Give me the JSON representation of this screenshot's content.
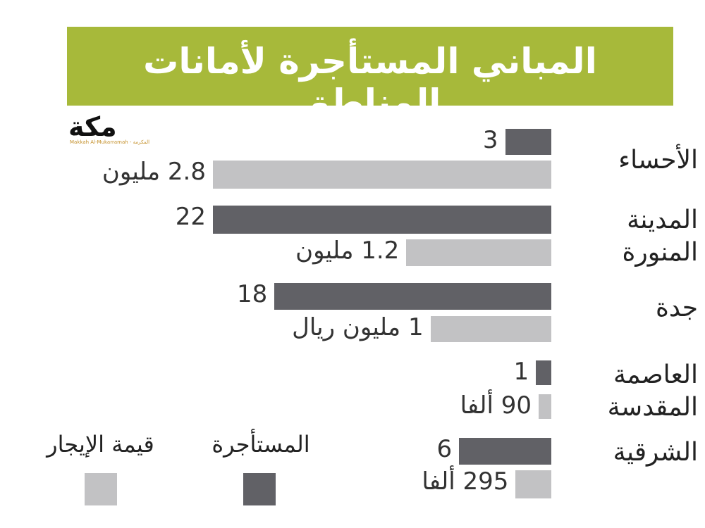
{
  "title": "المباني المستأجرة لأمانات المناطق",
  "logo": {
    "main": "مكة",
    "sub": "Makkah Al-Mukarramah - المكرمة"
  },
  "colors": {
    "banner": "#a7b93a",
    "rented": "#616166",
    "rent_value": "#c2c2c4"
  },
  "chart_data": {
    "type": "bar",
    "orientation": "horizontal",
    "title": "المباني المستأجرة لأمانات المناطق",
    "legend_position": "bottom-left",
    "grid": false,
    "categories": [
      "الأحساء",
      "المدينة المنورة",
      "جدة",
      "العاصمة المقدسة",
      "الشرقية"
    ],
    "category_lines": [
      [
        "الأحساء"
      ],
      [
        "المدينة",
        "المنورة"
      ],
      [
        "جدة"
      ],
      [
        "العاصمة",
        "المقدسة"
      ],
      [
        "الشرقية"
      ]
    ],
    "series": [
      {
        "name": "المستأجرة",
        "color": "#616166",
        "values": [
          3,
          22,
          18,
          1,
          6
        ],
        "labels": [
          "3",
          "22",
          "18",
          "1",
          "6"
        ]
      },
      {
        "name": "قيمة الإيجار",
        "color": "#c2c2c4",
        "values": [
          2800000,
          1200000,
          1000000,
          90000,
          295000
        ],
        "labels": [
          "2.8 مليون",
          "1.2 مليون",
          "1 مليون ريال",
          "90 ألفا",
          "295 ألفا"
        ]
      }
    ]
  }
}
